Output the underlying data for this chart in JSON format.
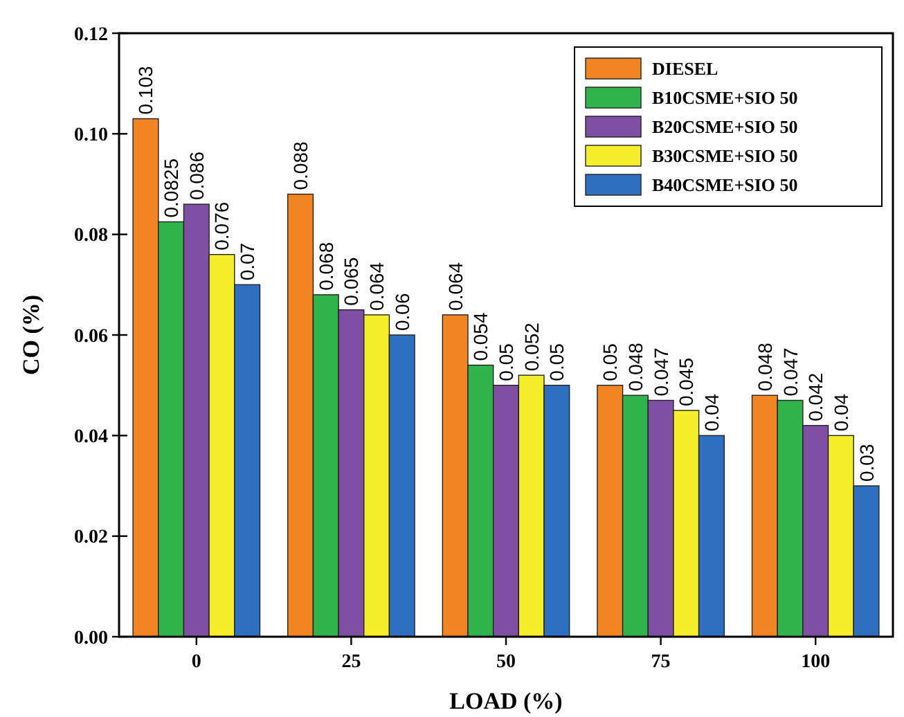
{
  "chart_data": {
    "type": "bar",
    "xlabel": "LOAD (%)",
    "ylabel": "CO (%)",
    "categories": [
      "0",
      "25",
      "50",
      "75",
      "100"
    ],
    "series": [
      {
        "name": "DIESEL",
        "color": "#f28522",
        "values": [
          0.103,
          0.088,
          0.064,
          0.05,
          0.048
        ]
      },
      {
        "name": "B10CSME+SIO 50",
        "color": "#2fb34a",
        "values": [
          0.0825,
          0.068,
          0.054,
          0.048,
          0.047
        ]
      },
      {
        "name": "B20CSME+SIO 50",
        "color": "#7e4fa3",
        "values": [
          0.086,
          0.065,
          0.05,
          0.047,
          0.042
        ]
      },
      {
        "name": "B30CSME+SIO 50",
        "color": "#f5ee2a",
        "values": [
          0.076,
          0.064,
          0.052,
          0.045,
          0.04
        ]
      },
      {
        "name": "B40CSME+SIO 50",
        "color": "#2f6fc0",
        "values": [
          0.07,
          0.06,
          0.05,
          0.04,
          0.03
        ]
      }
    ],
    "ylim": [
      0,
      0.12
    ],
    "yticks": [
      {
        "value": 0,
        "label": "0.00"
      },
      {
        "value": 0.02,
        "label": "0.02"
      },
      {
        "value": 0.04,
        "label": "0.04"
      },
      {
        "value": 0.06,
        "label": "0.06"
      },
      {
        "value": 0.08,
        "label": "0.08"
      },
      {
        "value": 0.1,
        "label": "0.10"
      },
      {
        "value": 0.12,
        "label": "0.12"
      }
    ],
    "data_labels": true,
    "legend": "top right",
    "grid": false
  }
}
